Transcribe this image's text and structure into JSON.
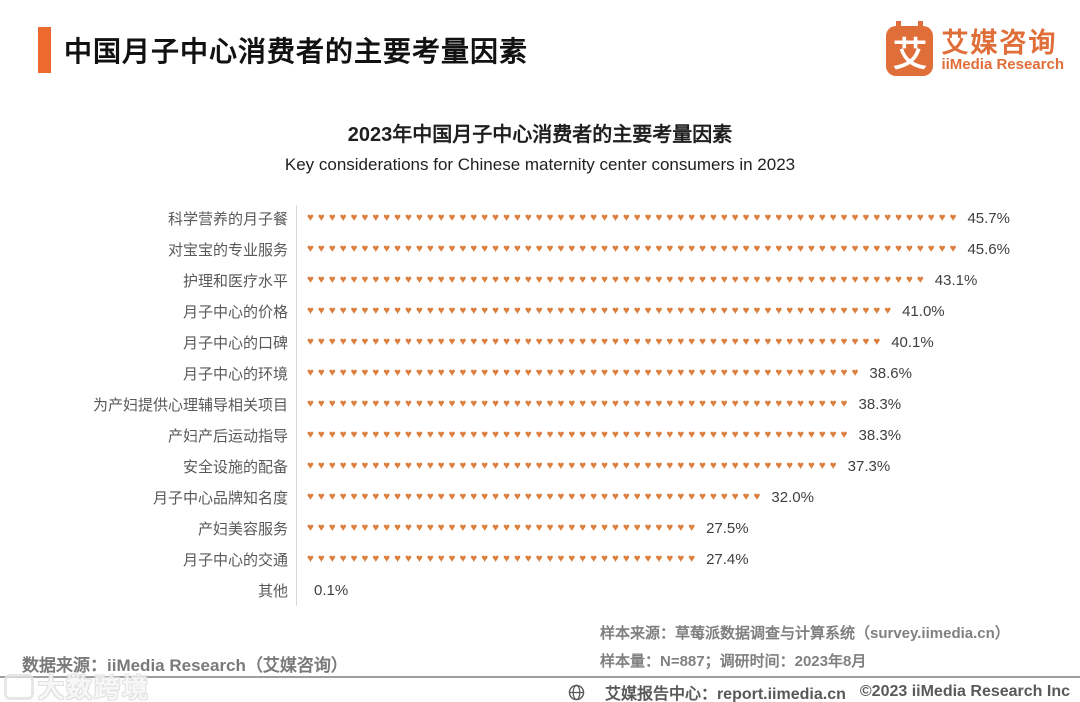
{
  "header": {
    "title": "中国月子中心消费者的主要考量因素",
    "logo": {
      "glyph": "艾",
      "name_cn": "艾媒咨询",
      "name_en": "iiMedia Research"
    }
  },
  "chart_data": {
    "type": "bar",
    "orientation": "horizontal",
    "pictogram_icon": "heart",
    "title": "2023年中国月子中心消费者的主要考量因素",
    "subtitle": "Key considerations for Chinese maternity center consumers in 2023",
    "categories": [
      "科学营养的月子餐",
      "对宝宝的专业服务",
      "护理和医疗水平",
      "月子中心的价格",
      "月子中心的口碑",
      "月子中心的环境",
      "为产妇提供心理辅导相关项目",
      "产妇产后运动指导",
      "安全设施的配备",
      "月子中心品牌知名度",
      "产妇美容服务",
      "月子中心的交通",
      "其他"
    ],
    "values": [
      45.7,
      45.6,
      43.1,
      41.0,
      40.1,
      38.6,
      38.3,
      38.3,
      37.3,
      32.0,
      27.5,
      27.4,
      0.1
    ],
    "value_labels": [
      "45.7%",
      "45.6%",
      "43.1%",
      "41.0%",
      "40.1%",
      "38.6%",
      "38.3%",
      "38.3%",
      "37.3%",
      "32.0%",
      "27.5%",
      "27.4%",
      "0.1%"
    ],
    "xlim": [
      0,
      50
    ],
    "legend": "none",
    "grid": "off",
    "accent_color": "#DC7F3E"
  },
  "footer": {
    "source_left": "数据来源：iiMedia Research（艾媒咨询）",
    "sample_source": "样本来源：草莓派数据调查与计算系统（survey.iimedia.cn）",
    "sample_size": "样本量：N=887；调研时间：2023年8月",
    "report_center": "艾媒报告中心：report.iimedia.cn",
    "copyright": "©2023  iiMedia Research Inc",
    "watermark": "大数跨境"
  },
  "colors": {
    "accent_orange": "#EC6A2D",
    "logo_orange": "#E06E38",
    "heart_orange": "#DC7F3E",
    "label_gray": "#595959",
    "value_gray": "#3F3F3F",
    "footer_gray": "#808080"
  }
}
